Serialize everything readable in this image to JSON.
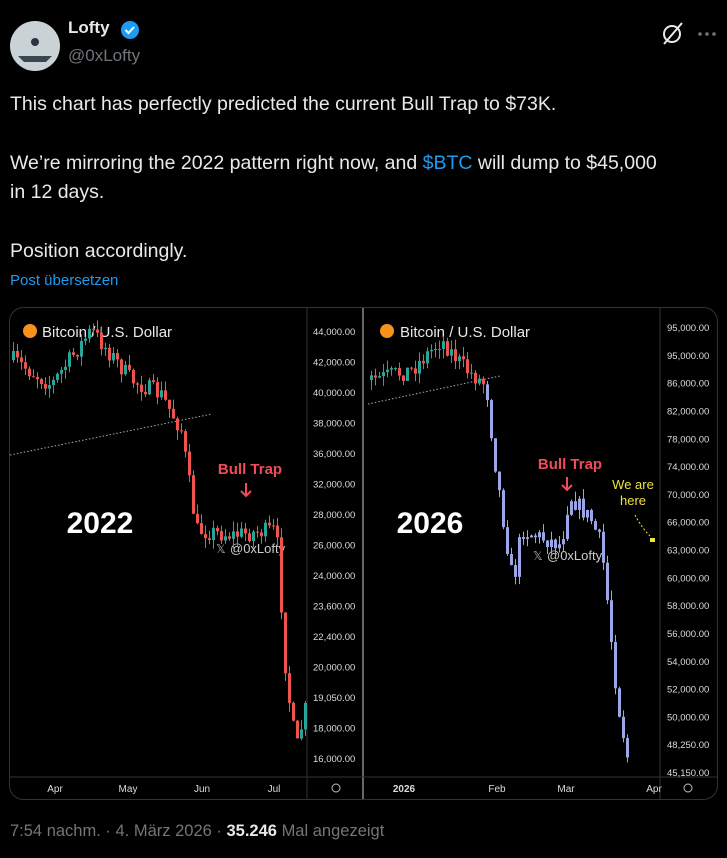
{
  "post": {
    "author": "Lofty",
    "handle": "@0xLofty",
    "line1": "This chart has perfectly predicted the current Bull Trap to $73K.",
    "line2a": "We’re mirroring the 2022 pattern right now, and ",
    "ticker": "$BTC",
    "line2b": " will dump to $45,000 in 12 days.",
    "line3": "Position accordingly.",
    "translate": "Post übersetzen",
    "time": "7:54 nachm.",
    "separator": "·",
    "date": "4. März 2026",
    "views": "35.246",
    "views_label": "Mal angezeigt"
  },
  "media": {
    "left": {
      "title": "Bitcoin / U.S. Dollar",
      "year": "2022",
      "annotation": "Bull Trap",
      "watermark": "@0xLofty",
      "yticks": [
        "44,000.00",
        "42,000.00",
        "40,000.00",
        "38,000.00",
        "36,000.00",
        "32,000.00",
        "28,000.00",
        "26,000.00",
        "24,000.00",
        "23,600.00",
        "22,400.00",
        "20,000.00",
        "19,050.00",
        "18,000.00",
        "16,000.00"
      ],
      "xticks": [
        "Apr",
        "May",
        "Jun",
        "Jul"
      ]
    },
    "right": {
      "title": "Bitcoin / U.S. Dollar",
      "year": "2026",
      "annotation": "Bull Trap",
      "watermark": "@0xLofty",
      "note": "We are here",
      "yticks": [
        "95,000.00",
        "95,000.00",
        "86,000.00",
        "82,000.00",
        "78,000.00",
        "74,000.00",
        "70,000.00",
        "66,000.00",
        "63,000.00",
        "60,000.00",
        "58,000.00",
        "56,000.00",
        "54,000.00",
        "52,000.00",
        "50,000.00",
        "48,250.00",
        "45,150.00"
      ],
      "xticks": [
        "2026",
        "Feb",
        "Mar",
        "Apr"
      ]
    }
  }
}
